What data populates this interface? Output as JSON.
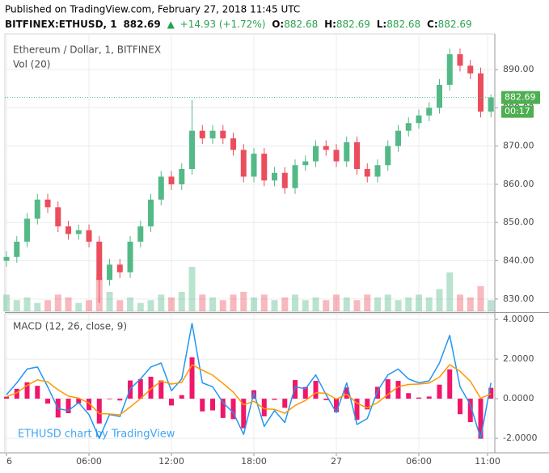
{
  "header": {
    "published": "Published on TradingView.com, February 27, 2018 11:45 UTC",
    "symbol": "BITFINEX:ETHUSD, 1",
    "last": "882.69",
    "arrow": "▲",
    "change": "+14.93 (+1.72%)",
    "o_label": "O:",
    "o": "882.68",
    "h_label": "H:",
    "h": "882.69",
    "l_label": "L:",
    "l": "882.68",
    "c_label": "C:",
    "c": "882.69"
  },
  "watermark": "ETHUSD chart by TradingView",
  "chart_data": [
    {
      "type": "candlestick",
      "title": "Ethereum / Dollar, 1, BITFINEX",
      "volume_label": "Vol (20)",
      "up_color": "#53b987",
      "down_color": "#eb4d5c",
      "grid": true,
      "countdown": "00:17",
      "x": [
        0,
        0.75,
        1.5,
        2.25,
        3,
        3.75,
        4.5,
        5.25,
        6,
        6.75,
        7.5,
        8.25,
        9,
        9.75,
        10.5,
        11.25,
        12,
        12.75,
        13.5,
        14.25,
        15,
        15.75,
        16.5,
        17.25,
        18,
        18.75,
        19.5,
        20.25,
        21,
        21.75,
        22.5,
        23.25,
        24,
        24.75,
        25.5,
        26.25,
        27,
        27.75,
        28.5,
        29.25,
        30,
        30.75,
        31.5,
        32.25,
        33,
        33.75,
        34.5,
        35.25
      ],
      "open": [
        840,
        841,
        845,
        851,
        856,
        854,
        849,
        847,
        848,
        845,
        835,
        839,
        837,
        845,
        849,
        856,
        862,
        860,
        864,
        874,
        872,
        874,
        872,
        869,
        862,
        868,
        861,
        863,
        859,
        865,
        866,
        870,
        869,
        866,
        871,
        864,
        862,
        865,
        870,
        874,
        876,
        878,
        880,
        886,
        894,
        891,
        889,
        879
      ],
      "high": [
        842.5,
        846.5,
        852.5,
        857.5,
        857.5,
        855.5,
        850.5,
        849.5,
        849.5,
        846.5,
        840.5,
        840.5,
        846.5,
        850.5,
        857.5,
        863.5,
        863.5,
        865.5,
        882,
        875.5,
        875.5,
        875.5,
        873.5,
        870.5,
        869.5,
        869.5,
        864.5,
        864.5,
        866.5,
        867.5,
        871.5,
        871.5,
        870.5,
        872.5,
        872.5,
        865.5,
        866.5,
        871.5,
        875.5,
        877.5,
        879.5,
        881.5,
        887.5,
        895.5,
        895.5,
        892.5,
        890.5,
        883.5
      ],
      "low": [
        838.5,
        839.5,
        843.5,
        849.5,
        852.5,
        847.5,
        845.5,
        845.5,
        843.5,
        829,
        833.5,
        835.5,
        835.5,
        843.5,
        847.5,
        854.5,
        858.5,
        858.5,
        862.5,
        870.5,
        870.5,
        870.5,
        867.5,
        860.5,
        860.5,
        859.5,
        859.5,
        857.5,
        857.5,
        863.5,
        864.5,
        867.5,
        864.5,
        864.5,
        862.5,
        860.5,
        860.5,
        863.5,
        868.5,
        872.5,
        874.5,
        876.5,
        878.5,
        884.5,
        889.5,
        887.5,
        877.5,
        877.5
      ],
      "close": [
        841,
        845,
        851,
        856,
        854,
        849,
        847,
        848,
        845,
        835,
        839,
        837,
        845,
        849,
        856,
        862,
        860,
        864,
        874,
        872,
        874,
        872,
        869,
        862,
        868,
        861,
        863,
        859,
        865,
        866,
        870,
        869,
        866,
        871,
        864,
        862,
        865,
        870,
        874,
        876,
        878,
        880,
        886,
        894,
        891,
        889,
        879,
        882.69
      ],
      "volume": [
        30,
        20,
        25,
        15,
        20,
        30,
        25,
        15,
        20,
        60,
        35,
        20,
        25,
        15,
        20,
        30,
        25,
        35,
        80,
        30,
        25,
        20,
        30,
        35,
        25,
        30,
        20,
        25,
        30,
        20,
        25,
        20,
        30,
        25,
        20,
        30,
        25,
        30,
        20,
        25,
        30,
        25,
        40,
        70,
        30,
        25,
        45,
        20
      ],
      "xlim": [
        -0.12,
        35.53
      ],
      "xticks": [
        {
          "value": 0,
          "label": "6"
        },
        {
          "value": 6,
          "label": "06:00"
        },
        {
          "value": 12,
          "label": "12:00"
        },
        {
          "value": 18,
          "label": "18:00"
        },
        {
          "value": 24,
          "label": "27"
        },
        {
          "value": 30,
          "label": "06:00"
        },
        {
          "value": 35,
          "label": "11:00"
        }
      ],
      "ylim": [
        826.8,
        899.3
      ],
      "yticks": [
        {
          "value": 830,
          "label": "830.00"
        },
        {
          "value": 840,
          "label": "840.00"
        },
        {
          "value": 850,
          "label": "850.00"
        },
        {
          "value": 860,
          "label": "860.00"
        },
        {
          "value": 870,
          "label": "870.00"
        },
        {
          "value": 880,
          "label": "880.00"
        },
        {
          "value": 890,
          "label": "890.00"
        }
      ]
    },
    {
      "type": "macd",
      "title": "MACD (12, 26, close, 9)",
      "grid": true,
      "ylim": [
        -2.73,
        4.29
      ],
      "yticks": [
        {
          "value": -2,
          "label": "-2.0000"
        },
        {
          "value": 0,
          "label": "0.0000"
        },
        {
          "value": 2,
          "label": "2.0000"
        },
        {
          "value": 4,
          "label": "4.0000"
        }
      ],
      "series": [
        {
          "kind": "histogram",
          "color": "#f0166a",
          "values": [
            0.1,
            0.5,
            0.83,
            0.65,
            -0.25,
            -0.95,
            -0.73,
            -0.23,
            -0.58,
            -1.25,
            -0.03,
            -0.09,
            0.92,
            0.99,
            1.11,
            0.92,
            -0.34,
            0.18,
            2.09,
            -0.64,
            -0.59,
            -0.97,
            -1.03,
            -1.49,
            0.43,
            -0.89,
            -0.06,
            -0.46,
            0.94,
            0.59,
            0.9,
            -0.07,
            -0.68,
            0.57,
            -1.07,
            -0.54,
            0.6,
            0.98,
            0.9,
            0.28,
            0.06,
            0.11,
            0.71,
            1.48,
            -0.78,
            -1.18,
            -2.02,
            0.55
          ]
        },
        {
          "kind": "line",
          "color": "#2196f3",
          "values": [
            0.2,
            0.8,
            1.5,
            1.6,
            0.6,
            -0.5,
            -0.6,
            -0.2,
            -0.8,
            -2.0,
            -0.8,
            -0.9,
            0.5,
            1.0,
            1.6,
            1.8,
            0.4,
            1.0,
            3.8,
            0.8,
            0.6,
            -0.2,
            -0.7,
            -1.8,
            0.3,
            -1.4,
            -0.6,
            -1.2,
            0.6,
            0.5,
            1.2,
            0.2,
            -0.7,
            0.8,
            -1.3,
            -1.0,
            0.4,
            1.2,
            1.5,
            1.0,
            0.8,
            0.9,
            1.8,
            3.2,
            0.6,
            -0.3,
            -2.0,
            0.8
          ]
        },
        {
          "kind": "line",
          "color": "#ff9800",
          "values": [
            0.1,
            0.3,
            0.67,
            0.95,
            0.85,
            0.45,
            0.13,
            0.03,
            -0.22,
            -0.75,
            -0.77,
            -0.81,
            -0.42,
            0.01,
            0.49,
            0.88,
            0.74,
            0.82,
            1.71,
            1.44,
            1.19,
            0.77,
            0.33,
            -0.31,
            -0.13,
            -0.51,
            -0.54,
            -0.74,
            -0.34,
            -0.09,
            0.3,
            0.27,
            -0.02,
            0.23,
            -0.23,
            -0.46,
            -0.2,
            0.22,
            0.6,
            0.72,
            0.74,
            0.79,
            1.09,
            1.72,
            1.38,
            0.88,
            0.02,
            0.25
          ]
        }
      ]
    }
  ]
}
